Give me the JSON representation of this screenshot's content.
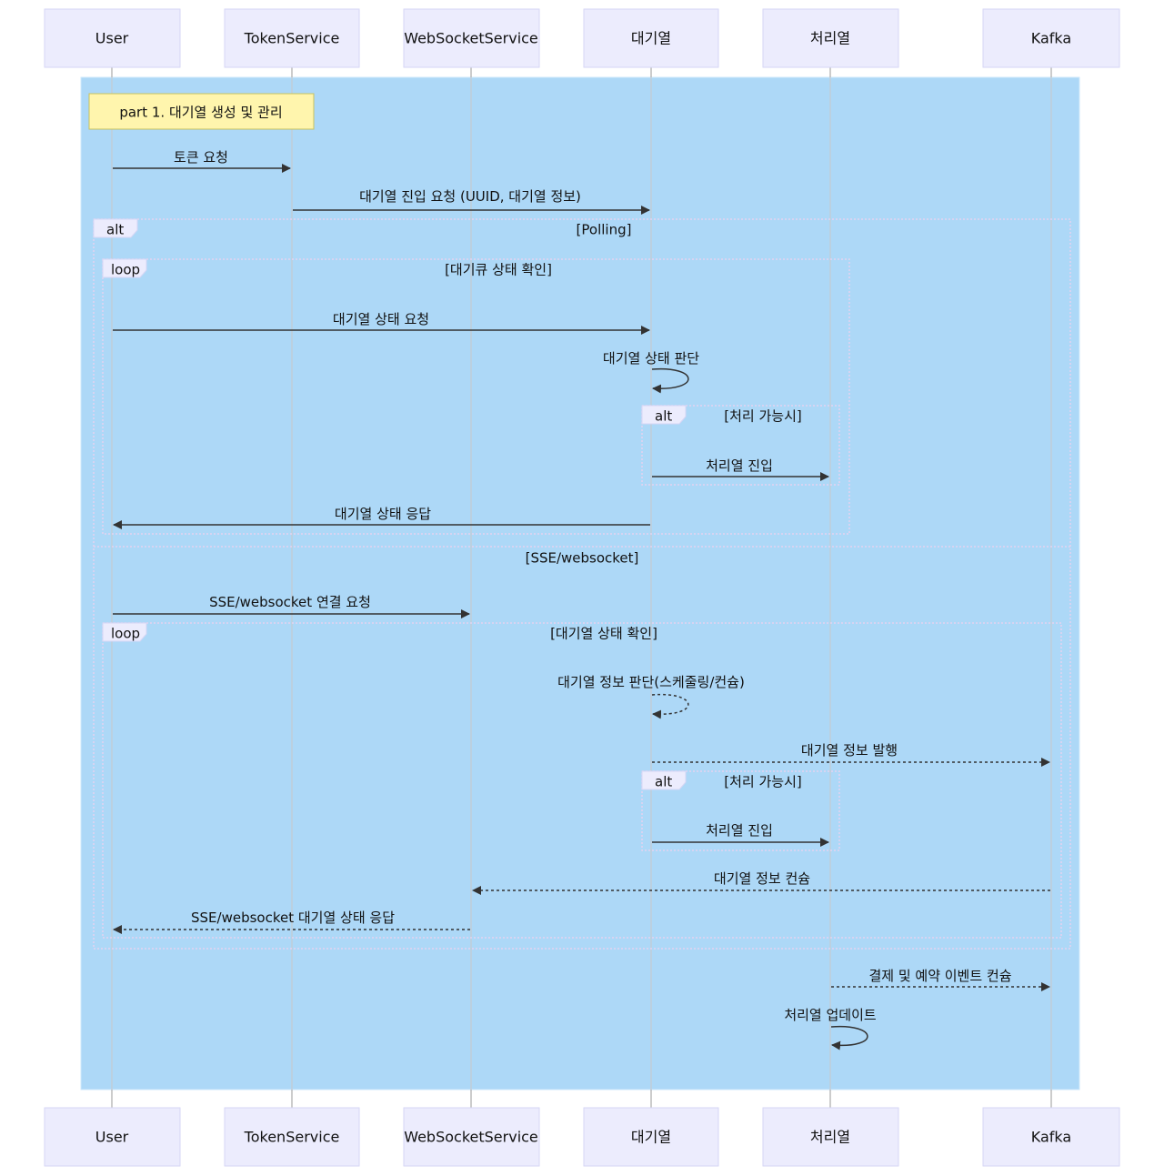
{
  "actors": [
    {
      "id": "user",
      "label": "User"
    },
    {
      "id": "token",
      "label": "TokenService"
    },
    {
      "id": "ws",
      "label": "WebSocketService"
    },
    {
      "id": "queue",
      "label": "대기열"
    },
    {
      "id": "proc",
      "label": "처리열"
    },
    {
      "id": "kafka",
      "label": "Kafka"
    }
  ],
  "part_note": "part 1. 대기열 생성 및 관리",
  "frames": [
    {
      "kind": "alt",
      "label": "alt",
      "sections": [
        "[Polling]",
        "[SSE/websocket]"
      ]
    },
    {
      "kind": "loop",
      "label": "loop",
      "sections": [
        "[대기큐 상태 확인]"
      ]
    },
    {
      "kind": "alt",
      "label": "alt",
      "sections": [
        "[처리 가능시]"
      ]
    },
    {
      "kind": "loop",
      "label": "loop",
      "sections": [
        "[대기열 상태 확인]"
      ]
    },
    {
      "kind": "alt",
      "label": "alt",
      "sections": [
        "[처리 가능시]"
      ]
    }
  ],
  "messages": [
    {
      "from": "user",
      "to": "token",
      "text": "토큰 요청",
      "style": "solid"
    },
    {
      "from": "token",
      "to": "queue",
      "text": "대기열 진입 요청 (UUID, 대기열 정보)",
      "style": "solid"
    },
    {
      "from": "user",
      "to": "queue",
      "text": "대기열 상태 요청",
      "style": "solid"
    },
    {
      "from": "queue",
      "to": "queue",
      "text": "대기열 상태 판단",
      "style": "solid"
    },
    {
      "from": "queue",
      "to": "proc",
      "text": "처리열 진입",
      "style": "solid"
    },
    {
      "from": "queue",
      "to": "user",
      "text": "대기열 상태 응답",
      "style": "solid"
    },
    {
      "from": "user",
      "to": "ws",
      "text": "SSE/websocket 연결 요청",
      "style": "solid"
    },
    {
      "from": "queue",
      "to": "queue",
      "text": "대기열 정보 판단(스케줄링/컨슘)",
      "style": "dashed"
    },
    {
      "from": "queue",
      "to": "kafka",
      "text": "대기열 정보 발행",
      "style": "dashed"
    },
    {
      "from": "queue",
      "to": "proc",
      "text": "처리열 진입",
      "style": "solid"
    },
    {
      "from": "kafka",
      "to": "ws",
      "text": "대기열 정보 컨슘",
      "style": "dashed"
    },
    {
      "from": "ws",
      "to": "user",
      "text": "SSE/websocket 대기열 상태 응답",
      "style": "dashed"
    },
    {
      "from": "proc",
      "to": "kafka",
      "text": "결제 및 예약 이벤트 컨슘",
      "style": "dashed"
    },
    {
      "from": "proc",
      "to": "proc",
      "text": "처리열 업데이트",
      "style": "solid"
    }
  ]
}
